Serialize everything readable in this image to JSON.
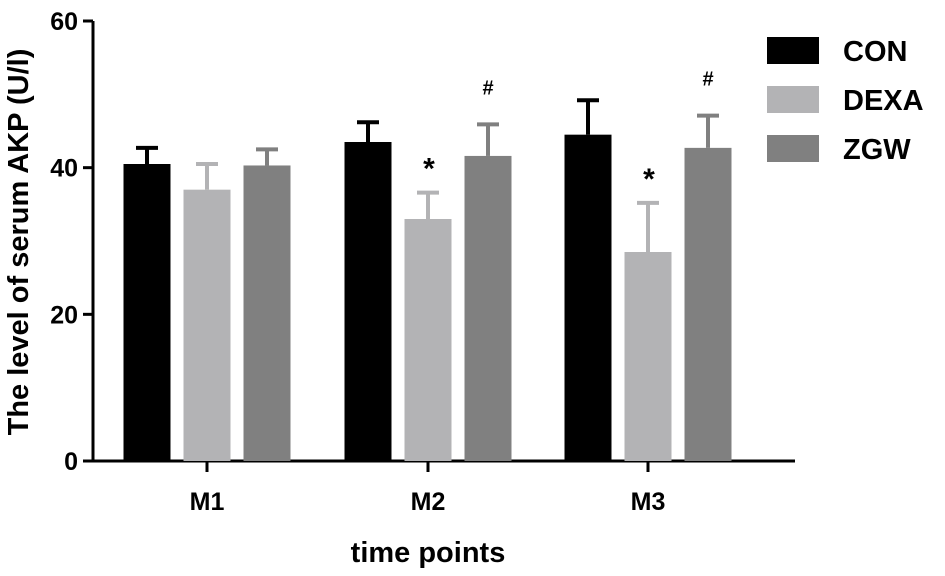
{
  "chart_data": {
    "type": "bar",
    "title": "",
    "xlabel": "time points",
    "ylabel": "The level of serum AKP (U/l)",
    "ylim": [
      0,
      60
    ],
    "yticks": [
      "0",
      "20",
      "40",
      "60"
    ],
    "categories": [
      "M1",
      "M2",
      "M3"
    ],
    "error_bars": true,
    "grid": false,
    "legend_position": "right",
    "series": [
      {
        "name": "CON",
        "color": "#000000",
        "values": [
          40.5,
          43.5,
          44.5
        ],
        "errors": [
          2.2,
          2.7,
          4.7
        ]
      },
      {
        "name": "DEXA",
        "color": "#b3b3b5",
        "values": [
          37.0,
          33.0,
          28.5
        ],
        "errors": [
          3.5,
          3.6,
          6.7
        ]
      },
      {
        "name": "ZGW",
        "color": "#808080",
        "values": [
          40.3,
          41.6,
          42.7
        ],
        "errors": [
          2.2,
          4.3,
          4.4
        ]
      }
    ],
    "annotations": [
      {
        "category": "M2",
        "series": "DEXA",
        "text": "*"
      },
      {
        "category": "M2",
        "series": "ZGW",
        "text": "#"
      },
      {
        "category": "M3",
        "series": "DEXA",
        "text": "*"
      },
      {
        "category": "M3",
        "series": "ZGW",
        "text": "#"
      }
    ]
  }
}
